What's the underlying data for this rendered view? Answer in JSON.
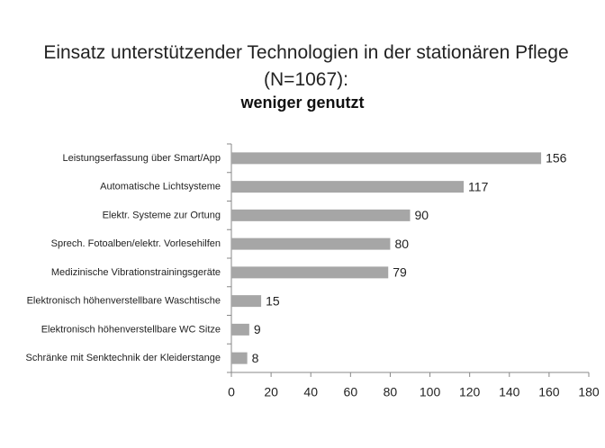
{
  "chart_data": {
    "type": "bar",
    "orientation": "horizontal",
    "title": "Einsatz unterstützender Technologien in der stationären Pflege (N=1067):",
    "subtitle": "weniger genutzt",
    "categories": [
      "Leistungserfassung über Smart/App",
      "Automatische Lichtsysteme",
      "Elektr. Systeme zur Ortung",
      "Sprech. Fotoalben/elektr. Vorlesehilfen",
      "Medizinische Vibrationstrainingsgeräte",
      "Elektronisch höhenverstellbare Waschtische",
      "Elektronisch höhenverstellbare WC Sitze",
      "Schränke mit Senktechnik der Kleiderstange"
    ],
    "values": [
      156,
      117,
      90,
      80,
      79,
      15,
      9,
      8
    ],
    "color": "#a6a6a6",
    "xlim": [
      0,
      180
    ],
    "xticks": [
      0,
      20,
      40,
      60,
      80,
      100,
      120,
      140,
      160,
      180
    ],
    "grid": false
  }
}
